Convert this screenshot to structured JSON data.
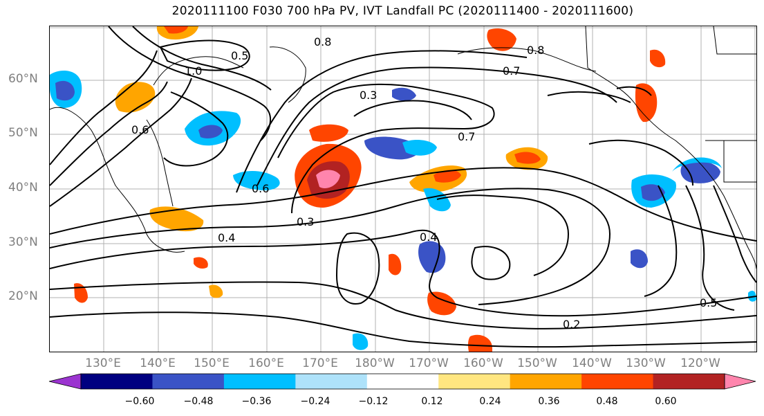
{
  "title": "2020111100 F030 700 hPa PV, IVT Landfall PC (2020111400 - 2020111600)",
  "lat_labels": [
    "60°N",
    "50°N",
    "40°N",
    "30°N",
    "20°N"
  ],
  "lon_labels": [
    "130°E",
    "140°E",
    "150°E",
    "160°E",
    "170°E",
    "180°W",
    "170°W",
    "160°W",
    "150°W",
    "140°W",
    "130°W",
    "120°W"
  ],
  "contour_labels": [
    "0.8",
    "0.5",
    "1.0",
    "0.6",
    "0.3",
    "0.7",
    "0.4",
    "0.2",
    "0.8",
    "0.7",
    "0.3",
    "0.6",
    "0.4",
    "0.5"
  ],
  "colorbar": {
    "ticks": [
      "−0.60",
      "−0.48",
      "−0.36",
      "−0.24",
      "−0.12",
      "0.12",
      "0.24",
      "0.36",
      "0.48",
      "0.60"
    ],
    "colors": [
      "#9b34d0",
      "#000080",
      "#3a53c6",
      "#00bfff",
      "#aee2fa",
      "#ffffff",
      "#ffe680",
      "#ffa500",
      "#ff4500",
      "#b22222",
      "#ff85ad"
    ]
  },
  "shading_colors": {
    "neg_weak": "#aee2fa",
    "neg_mid": "#00bfff",
    "neg_strong": "#3a53c6",
    "neg_max": "#000080",
    "pos_weak": "#ffe680",
    "pos_mid": "#ffa500",
    "pos_strong": "#ff4500",
    "pos_max": "#b22222",
    "pos_extreme": "#ff85ad"
  },
  "grid": true
}
